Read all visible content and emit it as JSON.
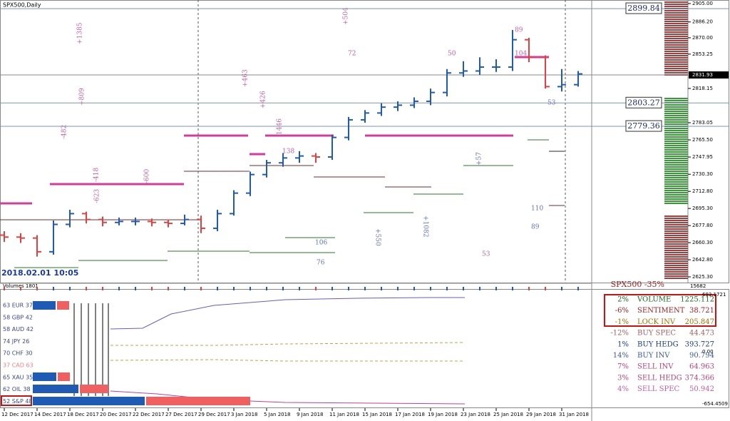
{
  "chart_data": {
    "type": "ohlc",
    "title": "SPX500,Daily",
    "categories": [
      "12 Dec 2017",
      null,
      "14 Dec 2017",
      null,
      "18 Dec 2017",
      null,
      "20 Dec 2017",
      null,
      "22 Dec 2017",
      null,
      "27 Dec 2017",
      null,
      "29 Dec 2017",
      null,
      "3 Jan 2018",
      null,
      "5 Jan 2018",
      null,
      "9 Jan 2018",
      null,
      "11 Jan 2018",
      null,
      "15 Jan 2018",
      null,
      "17 Jan 2018",
      null,
      "19 Jan 2018",
      null,
      "23 Jan 2018",
      null,
      "25 Jan 2018",
      null,
      "29 Jan 2018",
      null,
      "31 Jan 2018",
      null
    ],
    "open": [
      2668,
      2666,
      2665,
      2651,
      2679,
      2690,
      2684,
      2681,
      2682,
      2682,
      2681,
      2680,
      2684,
      2675,
      2690,
      2711,
      2730,
      2742,
      2747,
      2749,
      2748,
      2768,
      2786,
      2793,
      2799,
      2801,
      2805,
      2814,
      2834,
      2836,
      2840,
      2840,
      2868,
      2850,
      2820,
      2822
    ],
    "high": [
      2672,
      2670,
      2668,
      2683,
      2694,
      2692,
      2687,
      2686,
      2686,
      2685,
      2684,
      2689,
      2688,
      2694,
      2714,
      2733,
      2745,
      2752,
      2754,
      2752,
      2771,
      2789,
      2796,
      2803,
      2805,
      2809,
      2818,
      2838,
      2846,
      2850,
      2848,
      2878,
      2870,
      2852,
      2838,
      2836
    ],
    "low": [
      2661,
      2660,
      2646,
      2648,
      2676,
      2680,
      2677,
      2678,
      2678,
      2677,
      2676,
      2678,
      2670,
      2672,
      2688,
      2708,
      2727,
      2738,
      2742,
      2742,
      2745,
      2765,
      2783,
      2790,
      2795,
      2798,
      2801,
      2810,
      2830,
      2832,
      2835,
      2836,
      2845,
      2818,
      2815,
      2820
    ],
    "close": [
      2666,
      2665,
      2651,
      2679,
      2690,
      2684,
      2681,
      2682,
      2682,
      2681,
      2680,
      2684,
      2675,
      2690,
      2711,
      2730,
      2742,
      2747,
      2749,
      2748,
      2768,
      2786,
      2793,
      2799,
      2801,
      2805,
      2814,
      2834,
      2836,
      2840,
      2840,
      2868,
      2850,
      2820,
      2822,
      2833
    ],
    "up_color": "#1f5bb5",
    "down_color": "#e04040",
    "ylim": [
      2625.3,
      2905
    ],
    "yticks": [
      {
        "value": 2905,
        "label": "2905.00"
      },
      {
        "value": 2886.2,
        "label": "2886.20"
      },
      {
        "value": 2870,
        "label": "2870.00"
      },
      {
        "value": 2853.25,
        "label": "2853.25"
      },
      {
        "value": 2818.15,
        "label": "2818.15"
      },
      {
        "value": 2783.05,
        "label": "2783.05"
      },
      {
        "value": 2765.5,
        "label": "2765.50"
      },
      {
        "value": 2747.95,
        "label": "2747.95"
      },
      {
        "value": 2730.3,
        "label": "2730.30"
      },
      {
        "value": 2712.8,
        "label": "2712.80"
      },
      {
        "value": 2695.3,
        "label": "2695.30"
      },
      {
        "value": 2677.8,
        "label": "2677.80"
      },
      {
        "value": 2660.3,
        "label": "2660.30"
      },
      {
        "value": 2642.8,
        "label": "2642.80"
      },
      {
        "value": 2625.3,
        "label": "2625.30"
      }
    ],
    "levels": [
      2899.84,
      2803.27,
      2779.36
    ],
    "current_price": 2831.93,
    "timestamp": "2018.02.01 10:05",
    "change_label": "SPX500 -35%",
    "volume_label": "Volumes 1801",
    "volume_value": "15682",
    "annotations": [
      "+1385",
      "+504",
      "72",
      "50",
      "89",
      "104",
      "+463",
      "+426",
      "-1446",
      "138",
      "-418",
      "-600",
      "-623",
      "110",
      "89",
      "53",
      "53",
      "106",
      "76",
      "+809",
      "-482",
      "+550",
      "+1082",
      "+57"
    ]
  },
  "lower_panel": {
    "axis_labels": [
      "693.1721",
      "0.00",
      "-654.4509"
    ],
    "currencies": [
      "63 EUR 37",
      "58 GBP 42",
      "58 AUD 42",
      "74 JPY 26",
      "70 CHF 30",
      "37 CAD 63",
      "65 XAU 35",
      "62 OIL 38",
      "52 S&P 48"
    ],
    "table": [
      [
        "2%",
        "VOLUME",
        "1225.112"
      ],
      [
        "-6%",
        "SENTIMENT",
        "38.721"
      ],
      [
        "-1%",
        "LOCK INV",
        "205.847"
      ],
      [
        "-12%",
        "BUY SPEC",
        "44.473"
      ],
      [
        "1%",
        "BUY HEDG",
        "393.727"
      ],
      [
        "14%",
        "BUY INV",
        "90.794"
      ],
      [
        "7%",
        "SELL INV",
        "64.963"
      ],
      [
        "3%",
        "SELL HEDG",
        "374.366"
      ],
      [
        "4%",
        "SELL SPEC",
        "50.942"
      ]
    ]
  }
}
